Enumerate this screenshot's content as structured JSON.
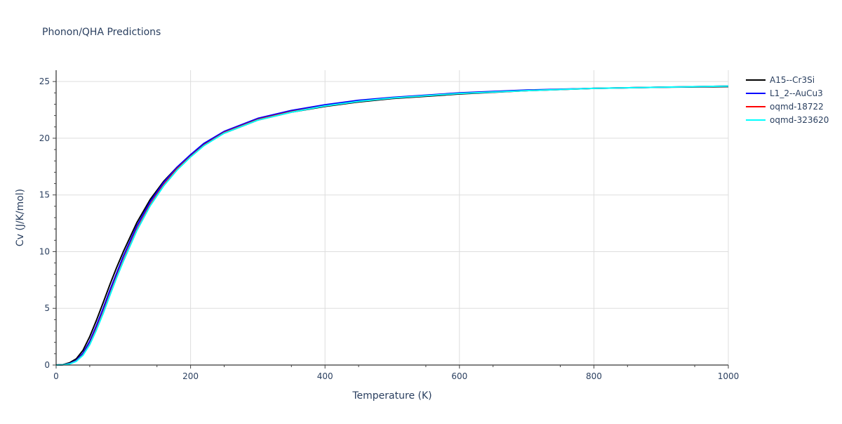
{
  "chart_data": {
    "type": "line",
    "title": "Phonon/QHA Predictions",
    "xlabel": "Temperature (K)",
    "ylabel": "Cv (J/K/mol)",
    "xlim": [
      0,
      1000
    ],
    "ylim": [
      0,
      26
    ],
    "x_ticks": [
      0,
      200,
      400,
      600,
      800,
      1000
    ],
    "y_ticks": [
      0,
      5,
      10,
      15,
      20,
      25
    ],
    "x_tick_labels": [
      "0",
      "200",
      "400",
      "600",
      "800",
      "1000"
    ],
    "y_tick_labels": [
      "0",
      "5",
      "10",
      "15",
      "20",
      "25"
    ],
    "grid": true,
    "legend_position": "top-right",
    "series": [
      {
        "name": "A15--Cr3Si",
        "color": "#000000",
        "x": [
          0,
          10,
          20,
          30,
          40,
          50,
          60,
          70,
          80,
          90,
          100,
          120,
          140,
          160,
          180,
          200,
          220,
          250,
          300,
          350,
          400,
          450,
          500,
          600,
          700,
          800,
          900,
          1000
        ],
        "y": [
          0,
          0.03,
          0.2,
          0.55,
          1.3,
          2.5,
          3.95,
          5.5,
          7.1,
          8.6,
          10.0,
          12.55,
          14.6,
          16.2,
          17.45,
          18.5,
          19.45,
          20.45,
          21.6,
          22.3,
          22.8,
          23.2,
          23.5,
          23.9,
          24.2,
          24.4,
          24.5,
          24.55
        ]
      },
      {
        "name": "L1_2--AuCu3",
        "color": "#0000ff",
        "x": [
          0,
          10,
          20,
          30,
          40,
          50,
          60,
          70,
          80,
          90,
          100,
          120,
          140,
          160,
          180,
          200,
          220,
          250,
          300,
          350,
          400,
          450,
          500,
          600,
          700,
          800,
          900,
          1000
        ],
        "y": [
          0,
          0.02,
          0.13,
          0.42,
          1.05,
          2.1,
          3.5,
          5.0,
          6.6,
          8.1,
          9.6,
          12.25,
          14.4,
          16.1,
          17.45,
          18.55,
          19.55,
          20.6,
          21.75,
          22.45,
          22.95,
          23.35,
          23.6,
          24.0,
          24.25,
          24.4,
          24.5,
          24.6
        ]
      },
      {
        "name": "oqmd-18722",
        "color": "#ff0000",
        "x": [
          0,
          10,
          20,
          30,
          40,
          50,
          60,
          70,
          80,
          90,
          100,
          120,
          140,
          160,
          180,
          200,
          220,
          250,
          300,
          350,
          400,
          450,
          500,
          600,
          700,
          800,
          900,
          1000
        ],
        "y": [
          0,
          0.02,
          0.1,
          0.35,
          0.9,
          1.85,
          3.2,
          4.65,
          6.25,
          7.8,
          9.25,
          11.95,
          14.15,
          15.9,
          17.3,
          18.4,
          19.4,
          20.5,
          21.65,
          22.35,
          22.85,
          23.25,
          23.55,
          23.95,
          24.2,
          24.4,
          24.5,
          24.6
        ]
      },
      {
        "name": "oqmd-323620",
        "color": "#00ffff",
        "x": [
          0,
          10,
          20,
          30,
          40,
          50,
          60,
          70,
          80,
          90,
          100,
          120,
          140,
          160,
          180,
          200,
          220,
          250,
          300,
          350,
          400,
          450,
          500,
          600,
          700,
          800,
          900,
          1000
        ],
        "y": [
          0,
          0.02,
          0.1,
          0.33,
          0.87,
          1.8,
          3.1,
          4.55,
          6.15,
          7.7,
          9.15,
          11.85,
          14.05,
          15.8,
          17.2,
          18.35,
          19.35,
          20.45,
          21.6,
          22.3,
          22.85,
          23.25,
          23.55,
          23.95,
          24.2,
          24.4,
          24.5,
          24.6
        ]
      }
    ]
  }
}
